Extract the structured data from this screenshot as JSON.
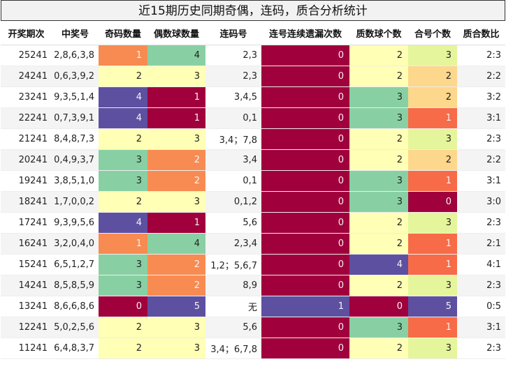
{
  "title": "近15期历史同期奇偶，连码，质合分析统计",
  "headers": [
    "开奖期次",
    "中奖号",
    "奇码数量",
    "偶数球数量",
    "连码号",
    "连号连续遗漏次数",
    "质数球个数",
    "合号个数",
    "质合数比"
  ],
  "colors": {
    "dark_red": "#a0003c",
    "purple": "#5e50a1",
    "green": "#88d0a3",
    "orange": "#f88b52",
    "light_yellow": "#ffffb5",
    "peach": "#fdd78b",
    "lime": "#e5f59b",
    "coral": "#f76b48"
  },
  "rows": [
    {
      "period": "25241",
      "numbers": "2,8,6,3,8",
      "odd": "1",
      "even": "4",
      "consecutive": "2,3",
      "miss": "0",
      "prime": "2",
      "composite": "3",
      "ratio": "2:3"
    },
    {
      "period": "24241",
      "numbers": "0,6,3,9,2",
      "odd": "2",
      "even": "3",
      "consecutive": "2,3",
      "miss": "0",
      "prime": "2",
      "composite": "2",
      "ratio": "2:2"
    },
    {
      "period": "23241",
      "numbers": "9,3,5,1,4",
      "odd": "4",
      "even": "1",
      "consecutive": "3,4,5",
      "miss": "0",
      "prime": "3",
      "composite": "2",
      "ratio": "3:2"
    },
    {
      "period": "22241",
      "numbers": "0,7,3,9,1",
      "odd": "4",
      "even": "1",
      "consecutive": "0,1",
      "miss": "0",
      "prime": "3",
      "composite": "1",
      "ratio": "3:1"
    },
    {
      "period": "21241",
      "numbers": "8,4,8,7,3",
      "odd": "2",
      "even": "3",
      "consecutive": "3,4；7,8",
      "miss": "0",
      "prime": "2",
      "composite": "3",
      "ratio": "2:3"
    },
    {
      "period": "20241",
      "numbers": "0,4,9,3,7",
      "odd": "3",
      "even": "2",
      "consecutive": "3,4",
      "miss": "0",
      "prime": "2",
      "composite": "2",
      "ratio": "2:2"
    },
    {
      "period": "19241",
      "numbers": "3,8,5,1,0",
      "odd": "3",
      "even": "2",
      "consecutive": "0,1",
      "miss": "0",
      "prime": "3",
      "composite": "1",
      "ratio": "3:1"
    },
    {
      "period": "18241",
      "numbers": "1,7,0,0,2",
      "odd": "2",
      "even": "3",
      "consecutive": "0,1,2",
      "miss": "0",
      "prime": "3",
      "composite": "0",
      "ratio": "3:0"
    },
    {
      "period": "17241",
      "numbers": "9,3,9,5,6",
      "odd": "4",
      "even": "1",
      "consecutive": "5,6",
      "miss": "0",
      "prime": "2",
      "composite": "3",
      "ratio": "2:3"
    },
    {
      "period": "16241",
      "numbers": "3,2,0,4,0",
      "odd": "1",
      "even": "4",
      "consecutive": "2,3,4",
      "miss": "0",
      "prime": "2",
      "composite": "1",
      "ratio": "2:1"
    },
    {
      "period": "15241",
      "numbers": "6,5,1,2,7",
      "odd": "3",
      "even": "2",
      "consecutive": "1,2；5,6,7",
      "miss": "0",
      "prime": "4",
      "composite": "1",
      "ratio": "4:1"
    },
    {
      "period": "14241",
      "numbers": "8,5,8,5,9",
      "odd": "3",
      "even": "2",
      "consecutive": "8,9",
      "miss": "0",
      "prime": "2",
      "composite": "3",
      "ratio": "2:3"
    },
    {
      "period": "13241",
      "numbers": "8,6,6,8,6",
      "odd": "0",
      "even": "5",
      "consecutive": "无",
      "miss": "1",
      "prime": "0",
      "composite": "5",
      "ratio": "0:5"
    },
    {
      "period": "12241",
      "numbers": "5,0,2,5,6",
      "odd": "2",
      "even": "3",
      "consecutive": "5,6",
      "miss": "0",
      "prime": "3",
      "composite": "1",
      "ratio": "3:1"
    },
    {
      "period": "11241",
      "numbers": "6,4,8,3,7",
      "odd": "2",
      "even": "3",
      "consecutive": "3,4；6,7,8",
      "miss": "0",
      "prime": "2",
      "composite": "3",
      "ratio": "2:3"
    }
  ]
}
